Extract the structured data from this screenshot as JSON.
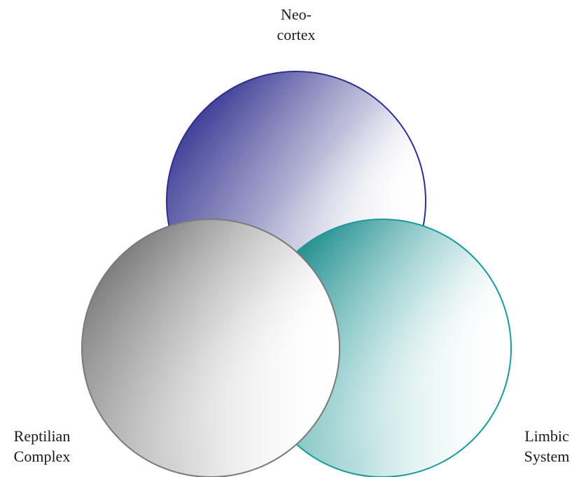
{
  "labels": {
    "neocortex": [
      "Neo-",
      "cortex"
    ],
    "reptilian": [
      "Reptilian",
      "Complex"
    ],
    "limbic": [
      "Limbic",
      "System"
    ]
  },
  "colors": {
    "neocortex_stroke": "#2e2e8f",
    "neocortex_fill": "#4a4aa0",
    "limbic_stroke": "#1a9a9a",
    "limbic_fill": "#2a9a9a",
    "reptilian_stroke": "#7a7a7a",
    "reptilian_fill": "#8a8a8a"
  }
}
